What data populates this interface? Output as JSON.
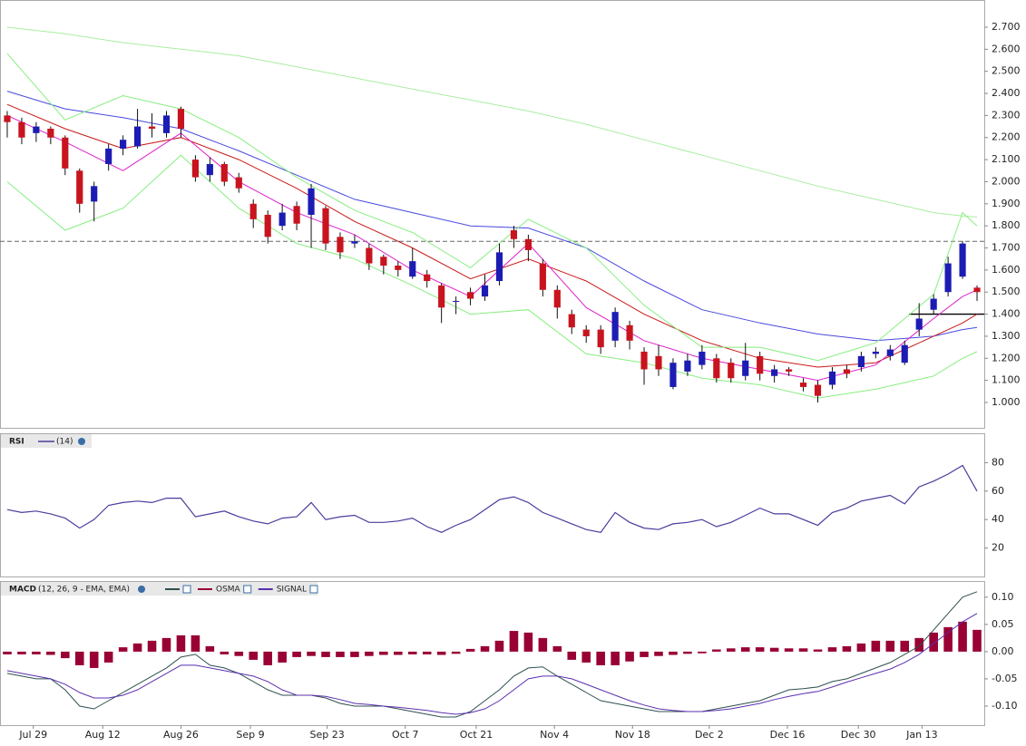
{
  "chart_data": [
    {
      "type": "candlestick",
      "xlim": [
        -0.5,
        67.5
      ],
      "ylim": [
        0.885,
        2.819
      ],
      "yticks": [
        {
          "value": 1.0,
          "label": "1.000"
        },
        {
          "value": 1.1,
          "label": "1.100"
        },
        {
          "value": 1.2,
          "label": "1.200"
        },
        {
          "value": 1.3,
          "label": "1.300"
        },
        {
          "value": 1.4,
          "label": "1.400"
        },
        {
          "value": 1.5,
          "label": "1.500"
        },
        {
          "value": 1.6,
          "label": "1.600"
        },
        {
          "value": 1.7,
          "label": "1.700"
        },
        {
          "value": 1.8,
          "label": "1.800"
        },
        {
          "value": 1.9,
          "label": "1.900"
        },
        {
          "value": 2.0,
          "label": "2.000"
        },
        {
          "value": 2.1,
          "label": "2.100"
        },
        {
          "value": 2.2,
          "label": "2.200"
        },
        {
          "value": 2.3,
          "label": "2.300"
        },
        {
          "value": 2.4,
          "label": "2.400"
        },
        {
          "value": 2.5,
          "label": "2.500"
        },
        {
          "value": 2.6,
          "label": "2.600"
        },
        {
          "value": 2.7,
          "label": "2.700"
        }
      ],
      "open": [
        2.3,
        2.27,
        2.22,
        2.24,
        2.2,
        2.05,
        1.91,
        2.08,
        2.15,
        2.16,
        2.25,
        2.22,
        2.33,
        2.1,
        2.03,
        2.08,
        2.02,
        1.9,
        1.85,
        1.8,
        1.89,
        1.85,
        1.88,
        1.75,
        1.72,
        1.7,
        1.66,
        1.62,
        1.57,
        1.58,
        1.53,
        1.46,
        1.5,
        1.48,
        1.55,
        1.78,
        1.74,
        1.63,
        1.51,
        1.4,
        1.33,
        1.33,
        1.28,
        1.35,
        1.23,
        1.21,
        1.07,
        1.14,
        1.17,
        1.2,
        1.18,
        1.12,
        1.21,
        1.12,
        1.15,
        1.09,
        1.08,
        1.08,
        1.15,
        1.16,
        1.22,
        1.21,
        1.18,
        1.33,
        1.42,
        1.5,
        1.57,
        1.52
      ],
      "high": [
        2.32,
        2.29,
        2.27,
        2.25,
        2.21,
        2.06,
        2.0,
        2.17,
        2.21,
        2.33,
        2.31,
        2.32,
        2.34,
        2.12,
        2.11,
        2.09,
        2.04,
        1.92,
        1.87,
        1.9,
        1.91,
        1.99,
        1.89,
        1.77,
        1.76,
        1.72,
        1.67,
        1.64,
        1.7,
        1.6,
        1.54,
        1.48,
        1.52,
        1.58,
        1.72,
        1.8,
        1.76,
        1.65,
        1.53,
        1.42,
        1.35,
        1.35,
        1.43,
        1.37,
        1.25,
        1.26,
        1.2,
        1.22,
        1.26,
        1.22,
        1.2,
        1.27,
        1.23,
        1.17,
        1.16,
        1.11,
        1.1,
        1.16,
        1.17,
        1.23,
        1.25,
        1.26,
        1.28,
        1.45,
        1.49,
        1.66,
        1.73,
        1.53
      ],
      "low": [
        2.2,
        2.17,
        2.18,
        2.17,
        2.03,
        1.86,
        1.82,
        2.05,
        2.12,
        2.15,
        2.2,
        2.2,
        2.2,
        2.0,
        2.0,
        1.98,
        1.95,
        1.79,
        1.72,
        1.78,
        1.78,
        1.7,
        1.69,
        1.65,
        1.7,
        1.6,
        1.58,
        1.57,
        1.56,
        1.52,
        1.36,
        1.4,
        1.44,
        1.46,
        1.53,
        1.7,
        1.64,
        1.48,
        1.38,
        1.31,
        1.27,
        1.22,
        1.25,
        1.24,
        1.08,
        1.12,
        1.06,
        1.12,
        1.15,
        1.09,
        1.09,
        1.1,
        1.1,
        1.09,
        1.12,
        1.05,
        1.0,
        1.06,
        1.11,
        1.14,
        1.2,
        1.19,
        1.17,
        1.3,
        1.4,
        1.48,
        1.56,
        1.46
      ],
      "close": [
        2.27,
        2.2,
        2.25,
        2.2,
        2.06,
        1.9,
        1.98,
        2.15,
        2.19,
        2.25,
        2.24,
        2.3,
        2.24,
        2.02,
        2.08,
        2.0,
        1.97,
        1.83,
        1.75,
        1.86,
        1.81,
        1.97,
        1.72,
        1.68,
        1.73,
        1.63,
        1.62,
        1.6,
        1.64,
        1.55,
        1.43,
        1.46,
        1.47,
        1.53,
        1.68,
        1.74,
        1.69,
        1.51,
        1.43,
        1.34,
        1.3,
        1.25,
        1.41,
        1.28,
        1.15,
        1.15,
        1.18,
        1.19,
        1.23,
        1.11,
        1.11,
        1.19,
        1.13,
        1.15,
        1.14,
        1.07,
        1.03,
        1.14,
        1.13,
        1.21,
        1.23,
        1.24,
        1.26,
        1.38,
        1.47,
        1.63,
        1.72,
        1.5
      ],
      "up_color": "#1c1cb4",
      "down_color": "#c8141e",
      "overlay_x": [
        0,
        4,
        8,
        12,
        16,
        20,
        24,
        28,
        32,
        36,
        40,
        44,
        48,
        52,
        56,
        60,
        64,
        66,
        67
      ],
      "overlays": [
        {
          "color": "#a8eea0",
          "values": [
            2.7,
            2.67,
            2.63,
            2.6,
            2.57,
            2.52,
            2.47,
            2.42,
            2.37,
            2.32,
            2.26,
            2.19,
            2.12,
            2.05,
            1.98,
            1.92,
            1.86,
            1.845,
            1.84
          ]
        },
        {
          "color": "#4848e0",
          "values": [
            2.41,
            2.33,
            2.29,
            2.24,
            2.14,
            2.03,
            1.92,
            1.86,
            1.8,
            1.79,
            1.7,
            1.55,
            1.42,
            1.36,
            1.31,
            1.28,
            1.3,
            1.33,
            1.34
          ]
        },
        {
          "color": "#c81818",
          "values": [
            2.35,
            2.24,
            2.15,
            2.2,
            2.1,
            1.97,
            1.82,
            1.7,
            1.56,
            1.65,
            1.55,
            1.4,
            1.28,
            1.2,
            1.16,
            1.18,
            1.3,
            1.36,
            1.4
          ]
        },
        {
          "color": "#dd22cc",
          "values": [
            2.3,
            2.18,
            2.05,
            2.22,
            2.0,
            1.86,
            1.76,
            1.6,
            1.48,
            1.72,
            1.43,
            1.28,
            1.2,
            1.15,
            1.1,
            1.17,
            1.38,
            1.48,
            1.51
          ]
        },
        {
          "color": "#88ee80",
          "values": [
            2.58,
            2.28,
            2.39,
            2.33,
            2.2,
            2.02,
            1.87,
            1.77,
            1.61,
            1.83,
            1.7,
            1.44,
            1.25,
            1.25,
            1.19,
            1.27,
            1.49,
            1.86,
            1.8
          ]
        },
        {
          "color": "#88ee80",
          "values": [
            2.0,
            1.78,
            1.88,
            2.12,
            1.88,
            1.72,
            1.65,
            1.53,
            1.4,
            1.42,
            1.22,
            1.18,
            1.11,
            1.08,
            1.02,
            1.06,
            1.12,
            1.2,
            1.23
          ]
        }
      ],
      "reference_lines": [
        {
          "value": 1.73,
          "style": "dashed",
          "start": -0.5
        },
        {
          "value": 1.4,
          "style": "solid",
          "start": 62.3
        }
      ]
    },
    {
      "type": "line",
      "title": "RSI",
      "subtitle": "(14)",
      "xlim": [
        -0.5,
        67.5
      ],
      "ylim": [
        0,
        100
      ],
      "yticks": [
        20,
        40,
        60,
        80
      ],
      "series": [
        {
          "color": "#4b3c9c",
          "values": [
            47,
            45,
            46,
            44,
            41,
            34,
            40,
            50,
            52,
            53,
            52,
            55,
            55,
            42,
            44,
            46,
            42,
            39,
            37,
            41,
            42,
            52,
            40,
            42,
            43,
            38,
            38,
            39,
            41,
            35,
            31,
            36,
            40,
            47,
            54,
            56,
            52,
            45,
            41,
            37,
            33,
            31,
            45,
            38,
            34,
            33,
            37,
            38,
            40,
            35,
            38,
            43,
            48,
            44,
            44,
            40,
            36,
            45,
            48,
            53,
            55,
            57,
            51,
            63,
            67,
            72,
            78,
            60
          ]
        }
      ]
    },
    {
      "type": "macd",
      "title": "MACD",
      "subtitle": "(12, 26, 9 - EMA, EMA)",
      "xlim": [
        -0.5,
        67.5
      ],
      "ylim": [
        -0.135,
        0.128
      ],
      "yticks": [
        {
          "value": -0.1,
          "label": "-0.10"
        },
        {
          "value": -0.05,
          "label": "-0.05"
        },
        {
          "value": 0,
          "label": "0.00"
        },
        {
          "value": 0.05,
          "label": "0.05"
        },
        {
          "value": 0.1,
          "label": "0.10"
        }
      ],
      "xticks": [
        {
          "value": 1.8,
          "label": "Jul 29"
        },
        {
          "value": 6.6,
          "label": "Aug 12"
        },
        {
          "value": 12,
          "label": "Aug 26"
        },
        {
          "value": 16.8,
          "label": "Sep 9"
        },
        {
          "value": 22.1,
          "label": "Sep 23"
        },
        {
          "value": 27.5,
          "label": "Oct 7"
        },
        {
          "value": 32.4,
          "label": "Oct 21"
        },
        {
          "value": 37.8,
          "label": "Nov 4"
        },
        {
          "value": 43.2,
          "label": "Nov 18"
        },
        {
          "value": 48.5,
          "label": "Dec 2"
        },
        {
          "value": 53.9,
          "label": "Dec 16"
        },
        {
          "value": 58.8,
          "label": "Dec 30"
        },
        {
          "value": 63.2,
          "label": "Jan 13"
        }
      ],
      "series": [
        {
          "kind": "line",
          "color": "#2f4f4f",
          "values": [
            -0.04,
            -0.045,
            -0.05,
            -0.05,
            -0.07,
            -0.1,
            -0.105,
            -0.09,
            -0.075,
            -0.06,
            -0.045,
            -0.03,
            -0.01,
            -0.005,
            -0.025,
            -0.03,
            -0.04,
            -0.055,
            -0.07,
            -0.08,
            -0.08,
            -0.08,
            -0.085,
            -0.095,
            -0.1,
            -0.1,
            -0.1,
            -0.105,
            -0.11,
            -0.115,
            -0.12,
            -0.12,
            -0.11,
            -0.09,
            -0.07,
            -0.045,
            -0.03,
            -0.028,
            -0.045,
            -0.06,
            -0.075,
            -0.09,
            -0.095,
            -0.1,
            -0.105,
            -0.11,
            -0.11,
            -0.11,
            -0.11,
            -0.105,
            -0.1,
            -0.095,
            -0.09,
            -0.08,
            -0.07,
            -0.068,
            -0.065,
            -0.055,
            -0.05,
            -0.04,
            -0.03,
            -0.02,
            -0.005,
            0.01,
            0.04,
            0.07,
            0.1,
            0.11
          ]
        },
        {
          "kind": "bar",
          "name": "OSMA",
          "color": "#990033",
          "values": [
            -0.005,
            -0.005,
            -0.005,
            -0.006,
            -0.012,
            -0.025,
            -0.03,
            -0.02,
            0.008,
            0.015,
            0.02,
            0.025,
            0.03,
            0.03,
            0.01,
            -0.005,
            -0.008,
            -0.015,
            -0.025,
            -0.02,
            -0.01,
            -0.008,
            -0.01,
            -0.01,
            -0.01,
            -0.008,
            -0.006,
            -0.006,
            -0.005,
            -0.005,
            -0.006,
            -0.004,
            0.005,
            0.01,
            0.02,
            0.038,
            0.035,
            0.025,
            0.01,
            -0.015,
            -0.02,
            -0.025,
            -0.025,
            -0.018,
            -0.01,
            -0.008,
            -0.006,
            -0.004,
            -0.003,
            0.004,
            0.006,
            0.008,
            0.008,
            0.007,
            0.006,
            0.006,
            0.004,
            0.008,
            0.01,
            0.015,
            0.02,
            0.02,
            0.02,
            0.025,
            0.035,
            0.045,
            0.055,
            0.04
          ]
        },
        {
          "kind": "line",
          "name": "SIGNAL",
          "color": "#5b2fb0",
          "values": [
            -0.035,
            -0.04,
            -0.045,
            -0.05,
            -0.06,
            -0.075,
            -0.085,
            -0.085,
            -0.08,
            -0.07,
            -0.055,
            -0.04,
            -0.025,
            -0.025,
            -0.03,
            -0.035,
            -0.04,
            -0.045,
            -0.055,
            -0.07,
            -0.08,
            -0.08,
            -0.082,
            -0.088,
            -0.095,
            -0.097,
            -0.1,
            -0.102,
            -0.105,
            -0.108,
            -0.112,
            -0.115,
            -0.112,
            -0.105,
            -0.09,
            -0.07,
            -0.05,
            -0.045,
            -0.045,
            -0.05,
            -0.06,
            -0.07,
            -0.08,
            -0.09,
            -0.098,
            -0.105,
            -0.108,
            -0.11,
            -0.11,
            -0.108,
            -0.105,
            -0.1,
            -0.095,
            -0.088,
            -0.082,
            -0.077,
            -0.073,
            -0.065,
            -0.056,
            -0.048,
            -0.04,
            -0.032,
            -0.02,
            -0.005,
            0.015,
            0.035,
            0.055,
            0.07
          ]
        }
      ]
    }
  ]
}
